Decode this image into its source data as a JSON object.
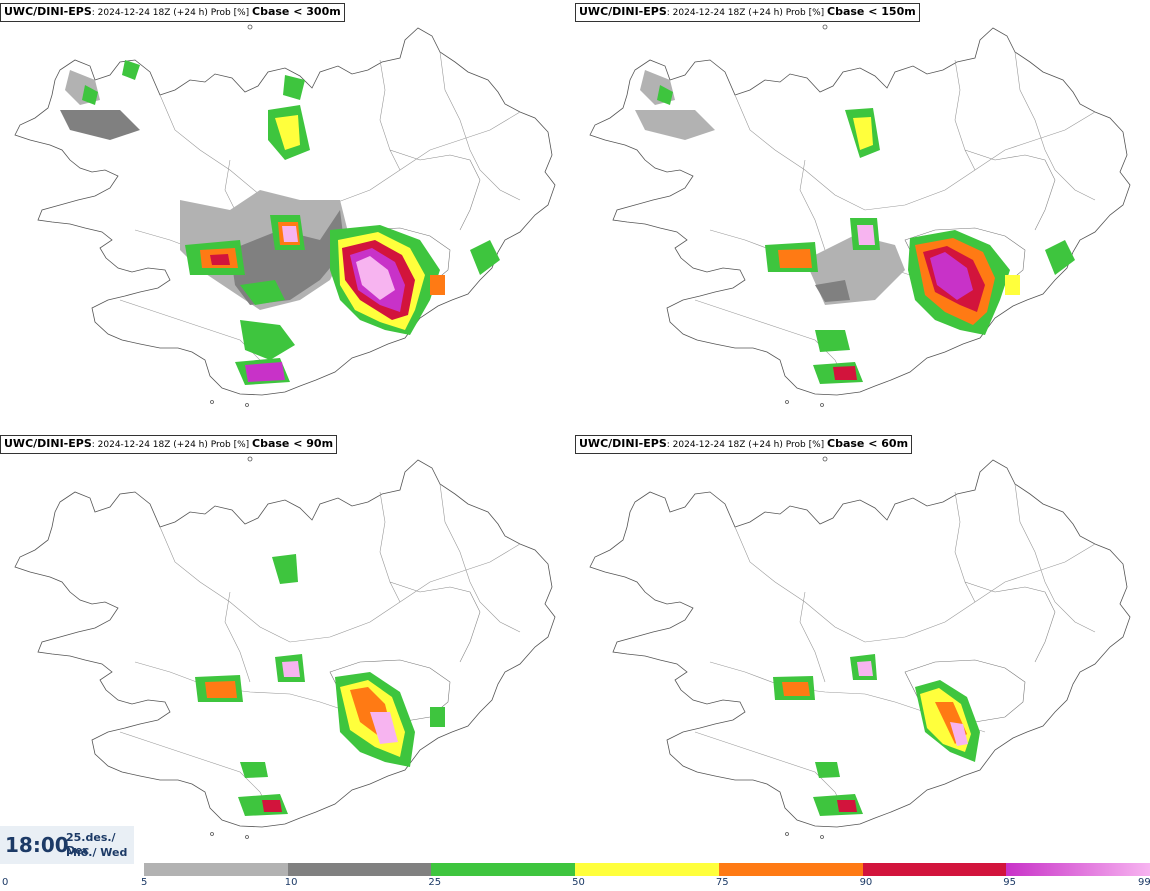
{
  "panels": [
    {
      "model": "UWC/DINI-EPS",
      "meta": ": 2024-12-24 18Z (+24 h) Prob [%] ",
      "variable": "Cbase < 300m"
    },
    {
      "model": "UWC/DINI-EPS",
      "meta": ": 2024-12-24 18Z (+24 h) Prob [%] ",
      "variable": "Cbase < 150m"
    },
    {
      "model": "UWC/DINI-EPS",
      "meta": ": 2024-12-24 18Z (+24 h) Prob [%] ",
      "variable": "Cbase < 90m"
    },
    {
      "model": "UWC/DINI-EPS",
      "meta": ": 2024-12-24 18Z (+24 h) Prob [%] ",
      "variable": "Cbase < 60m"
    }
  ],
  "valid_time": {
    "time": "18:00",
    "date_line1": "25.des./ Dec",
    "date_line2": "Mið./ Wed"
  },
  "legend": {
    "min_label": "0",
    "bins": [
      {
        "from": "5",
        "to": "10",
        "color": "#b2b2b2"
      },
      {
        "from": "10",
        "to": "25",
        "color": "#808080"
      },
      {
        "from": "25",
        "to": "50",
        "color": "#3ec53e"
      },
      {
        "from": "50",
        "to": "75",
        "color": "#ffff3c"
      },
      {
        "from": "75",
        "to": "90",
        "color": "#ff7a14"
      },
      {
        "from": "90",
        "to": "95",
        "color": "#d2143c"
      },
      {
        "from": "95",
        "to": "99",
        "color": "#c832c8"
      }
    ],
    "max_label": "99",
    "top_color": "#f7b4f0"
  }
}
